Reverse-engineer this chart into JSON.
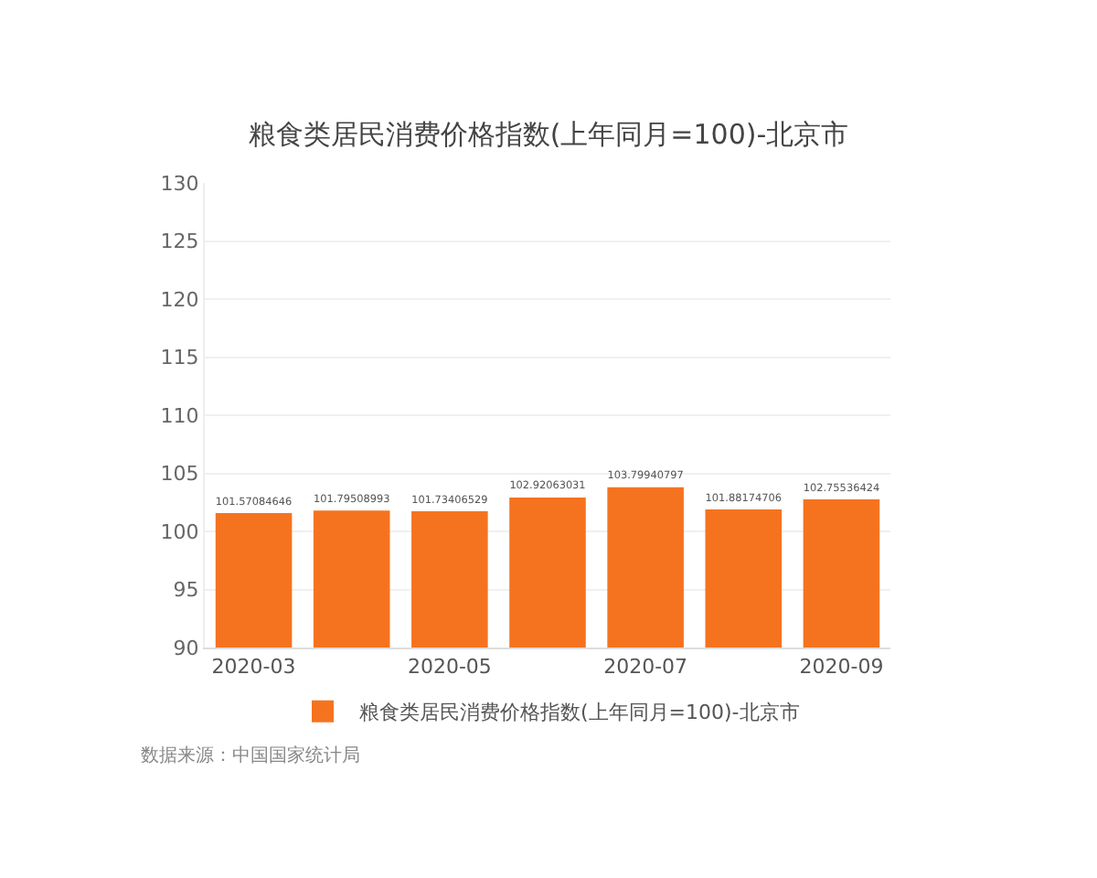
{
  "chart_data": {
    "type": "bar",
    "title": "粮食类居民消费价格指数(上年同月=100)-北京市",
    "categories": [
      "2020-03",
      null,
      "2020-05",
      null,
      "2020-07",
      null,
      "2020-09"
    ],
    "series": [
      {
        "name": "粮食类居民消费价格指数(上年同月=100)-北京市",
        "color": "#f5731f",
        "values": [
          101.57084646,
          101.79508993,
          101.73406529,
          102.92063031,
          103.79940797,
          101.88174706,
          102.75536424
        ]
      }
    ],
    "data_labels": true,
    "ylim": [
      90,
      130
    ],
    "yticks": [
      90,
      95,
      100,
      105,
      110,
      115,
      120,
      125,
      130
    ],
    "grid": "y",
    "legend": "bottom",
    "annotations": [
      "数据来源：中国国家统计局"
    ]
  }
}
